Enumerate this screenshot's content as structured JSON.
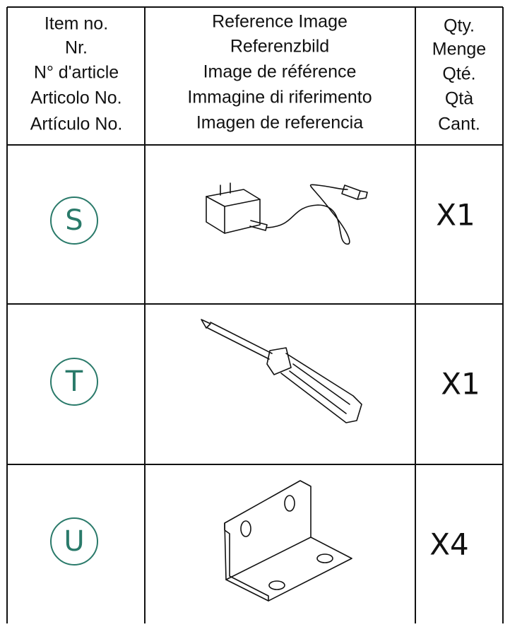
{
  "header": {
    "item_column": [
      "Item no.",
      "Nr.",
      "N° d'article",
      "Articolo No.",
      "Artículo No."
    ],
    "reference_column": [
      "Reference Image",
      "Referenzbild",
      "Image de référence",
      "Immagine di riferimento",
      "Imagen de referencia"
    ],
    "qty_column": [
      "Qty.",
      "Menge",
      "Qté.",
      "Qtà",
      "Cant."
    ]
  },
  "rows": [
    {
      "item": "S",
      "qty": "X1"
    },
    {
      "item": "T",
      "qty": "X1"
    },
    {
      "item": "U",
      "qty": "X4"
    }
  ]
}
